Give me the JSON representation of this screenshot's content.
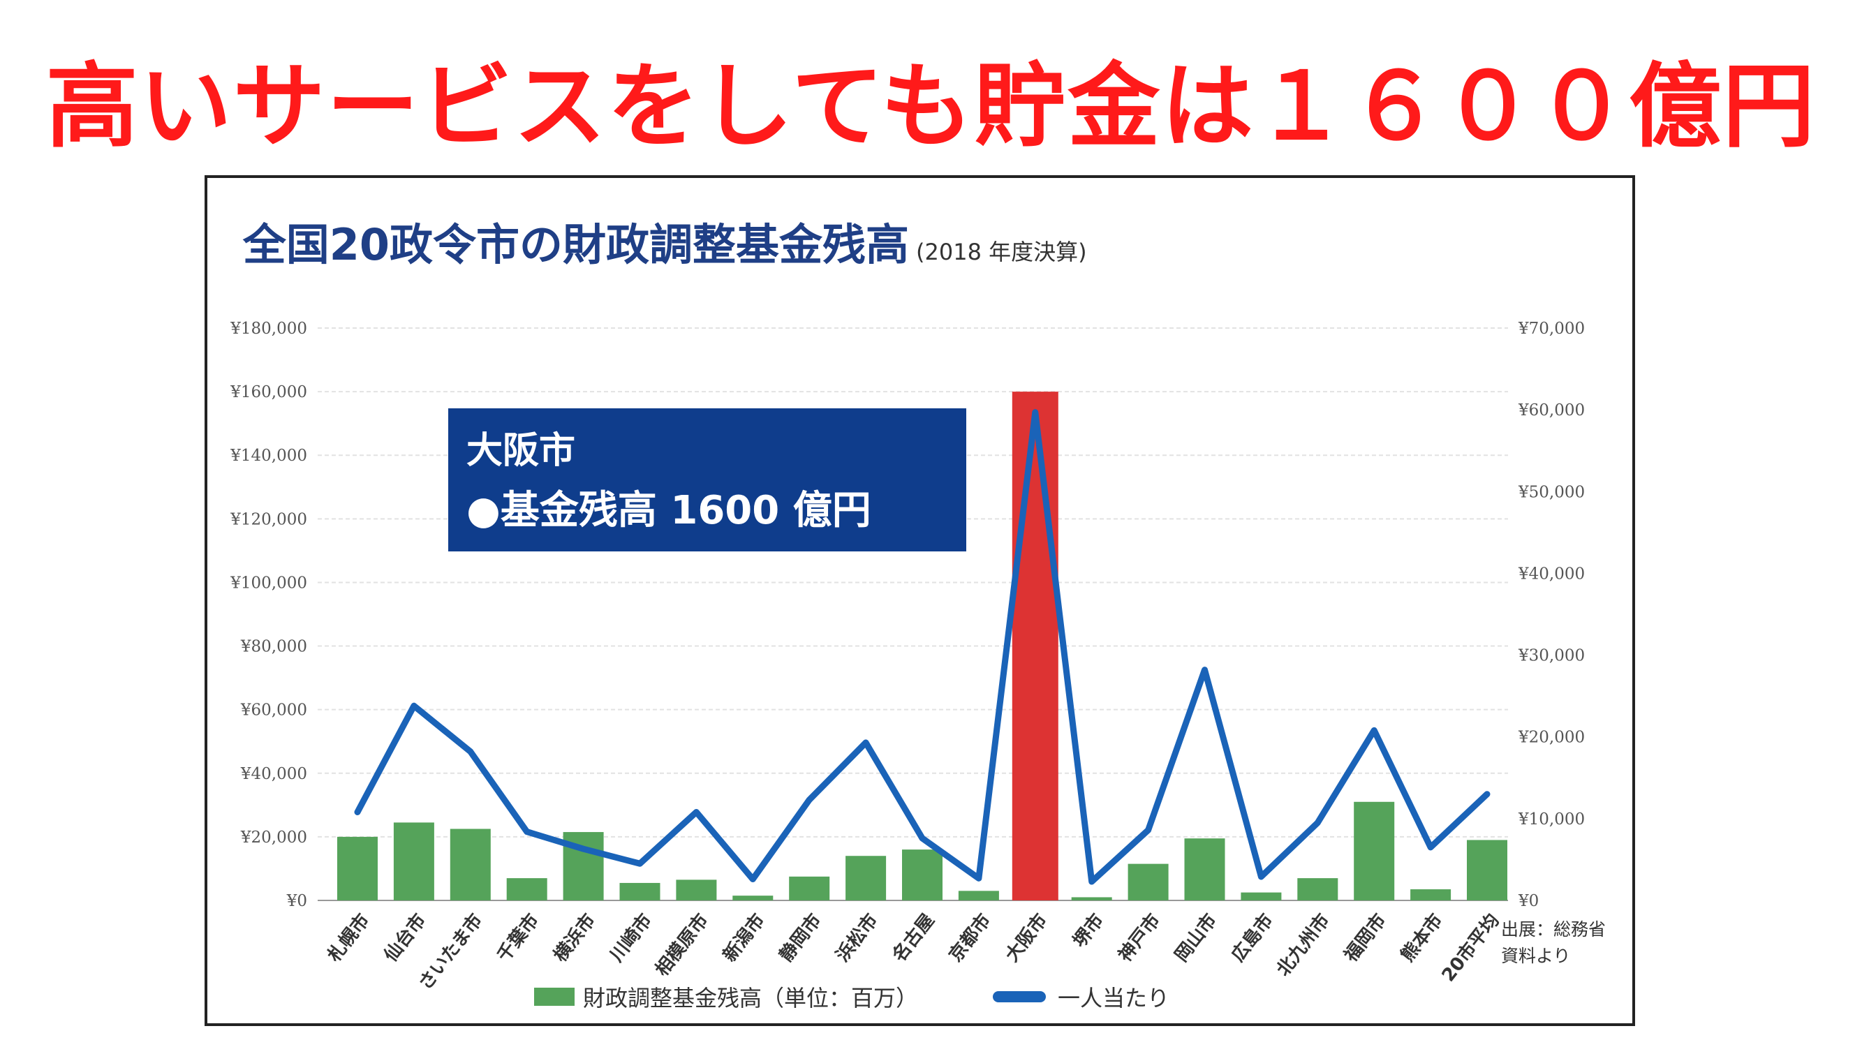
{
  "headline": "高いサービスをしても貯金は１６００億円",
  "colors": {
    "headline": "#ff1a1a",
    "title": "#1f3f86",
    "bar": "#55a35a",
    "bar_highlight": "#dd3333",
    "line": "#1a63b8",
    "callout_bg": "#0f3d8c",
    "highlight_label": "#e02020"
  },
  "callout": {
    "line1": "大阪市",
    "line2": "●基金残高 1600 億円"
  },
  "source_note": [
    "出展：総務省",
    "資料より"
  ],
  "chart_data": {
    "type": "bar",
    "title": "全国20政令市の財政調整基金残高",
    "subtitle": "(2018 年度決算)",
    "categories": [
      "札幌市",
      "仙台市",
      "さいたま市",
      "千葉市",
      "横浜市",
      "川崎市",
      "相模原市",
      "新潟市",
      "静岡市",
      "浜松市",
      "名古屋",
      "京都市",
      "大阪市",
      "堺市",
      "神戸市",
      "岡山市",
      "広島市",
      "北九州市",
      "福岡市",
      "熊本市",
      "20市平均"
    ],
    "highlight_category": "大阪市",
    "series": [
      {
        "name": "財政調整基金残高（単位：百万）",
        "type": "bar",
        "axis": "left",
        "values": [
          20000,
          24500,
          22500,
          7000,
          21500,
          5500,
          6500,
          1500,
          7500,
          14000,
          16000,
          3000,
          160000,
          1000,
          11500,
          19500,
          2500,
          7000,
          31000,
          3500,
          19000
        ]
      },
      {
        "name": "一人当たり",
        "type": "line",
        "axis": "right",
        "values": [
          10800,
          23800,
          18200,
          8400,
          6300,
          4500,
          10800,
          2600,
          12300,
          19300,
          7600,
          2700,
          59700,
          2300,
          8600,
          28200,
          2900,
          9500,
          20800,
          6500,
          13000
        ]
      }
    ],
    "y_left": {
      "ylim": [
        0,
        180000
      ],
      "ticks": [
        0,
        20000,
        40000,
        60000,
        80000,
        100000,
        120000,
        140000,
        160000,
        180000
      ],
      "tick_labels": [
        "¥0",
        "¥20,000",
        "¥40,000",
        "¥60,000",
        "¥80,000",
        "¥100,000",
        "¥120,000",
        "¥140,000",
        "¥160,000",
        "¥180,000"
      ]
    },
    "y_right": {
      "ylim": [
        0,
        70000
      ],
      "ticks": [
        0,
        10000,
        20000,
        30000,
        40000,
        50000,
        60000,
        70000
      ],
      "tick_labels": [
        "¥0",
        "¥10,000",
        "¥20,000",
        "¥30,000",
        "¥40,000",
        "¥50,000",
        "¥60,000",
        "¥70,000"
      ]
    },
    "grid": true,
    "legend_position": "bottom"
  }
}
